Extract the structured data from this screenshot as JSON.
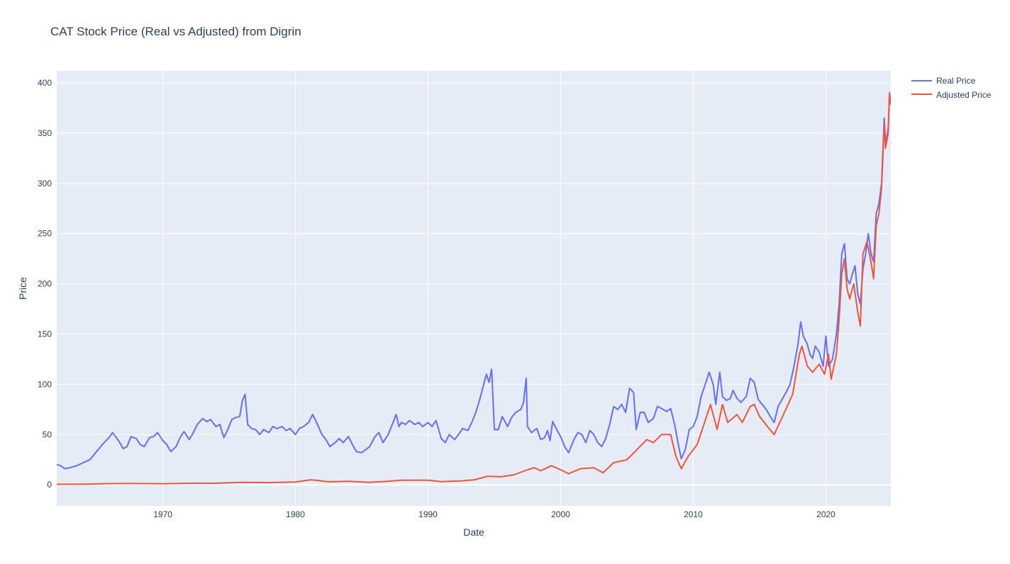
{
  "chart_data": {
    "type": "line",
    "title": "CAT Stock Price (Real vs Adjusted) from Digrin",
    "xlabel": "Date",
    "ylabel": "Price",
    "xlim": [
      1962.0,
      2024.9
    ],
    "ylim": [
      -21,
      412
    ],
    "x_ticks": [
      1970,
      1980,
      1990,
      2000,
      2010,
      2020
    ],
    "y_ticks": [
      0,
      50,
      100,
      150,
      200,
      250,
      300,
      350,
      400
    ],
    "grid": true,
    "legend_position": "top-right",
    "colors": {
      "plot_bg": "#e5ecf6",
      "grid": "#ffffff",
      "real": "#636efa",
      "adjusted": "#ef553b"
    },
    "series": [
      {
        "name": "Real Price",
        "color": "#636efa",
        "points": [
          [
            1962.0,
            20
          ],
          [
            1962.3,
            19
          ],
          [
            1962.6,
            16
          ],
          [
            1963.0,
            17
          ],
          [
            1963.5,
            19
          ],
          [
            1964.0,
            22
          ],
          [
            1964.5,
            25
          ],
          [
            1965.0,
            33
          ],
          [
            1965.5,
            41
          ],
          [
            1965.8,
            45
          ],
          [
            1966.0,
            48
          ],
          [
            1966.2,
            52
          ],
          [
            1966.5,
            47
          ],
          [
            1966.8,
            41
          ],
          [
            1967.0,
            36
          ],
          [
            1967.3,
            38
          ],
          [
            1967.6,
            48
          ],
          [
            1968.0,
            46
          ],
          [
            1968.3,
            40
          ],
          [
            1968.6,
            38
          ],
          [
            1969.0,
            47
          ],
          [
            1969.3,
            48
          ],
          [
            1969.6,
            52
          ],
          [
            1970.0,
            44
          ],
          [
            1970.3,
            40
          ],
          [
            1970.6,
            33
          ],
          [
            1971.0,
            38
          ],
          [
            1971.3,
            47
          ],
          [
            1971.6,
            53
          ],
          [
            1972.0,
            45
          ],
          [
            1972.3,
            52
          ],
          [
            1972.6,
            60
          ],
          [
            1973.0,
            66
          ],
          [
            1973.3,
            63
          ],
          [
            1973.6,
            65
          ],
          [
            1974.0,
            58
          ],
          [
            1974.3,
            60
          ],
          [
            1974.6,
            47
          ],
          [
            1974.9,
            55
          ],
          [
            1975.2,
            65
          ],
          [
            1975.5,
            67
          ],
          [
            1975.8,
            68
          ],
          [
            1976.0,
            84
          ],
          [
            1976.2,
            90
          ],
          [
            1976.4,
            60
          ],
          [
            1976.7,
            56
          ],
          [
            1977.0,
            55
          ],
          [
            1977.3,
            50
          ],
          [
            1977.6,
            55
          ],
          [
            1978.0,
            52
          ],
          [
            1978.3,
            58
          ],
          [
            1978.6,
            56
          ],
          [
            1979.0,
            58
          ],
          [
            1979.3,
            54
          ],
          [
            1979.6,
            56
          ],
          [
            1980.0,
            50
          ],
          [
            1980.3,
            56
          ],
          [
            1980.6,
            58
          ],
          [
            1981.0,
            62
          ],
          [
            1981.3,
            70
          ],
          [
            1981.6,
            62
          ],
          [
            1982.0,
            50
          ],
          [
            1982.3,
            45
          ],
          [
            1982.6,
            38
          ],
          [
            1983.0,
            42
          ],
          [
            1983.3,
            46
          ],
          [
            1983.6,
            42
          ],
          [
            1984.0,
            48
          ],
          [
            1984.3,
            40
          ],
          [
            1984.6,
            33
          ],
          [
            1985.0,
            32
          ],
          [
            1985.3,
            35
          ],
          [
            1985.6,
            38
          ],
          [
            1986.0,
            48
          ],
          [
            1986.3,
            52
          ],
          [
            1986.6,
            42
          ],
          [
            1987.0,
            50
          ],
          [
            1987.3,
            60
          ],
          [
            1987.6,
            70
          ],
          [
            1987.8,
            58
          ],
          [
            1988.0,
            62
          ],
          [
            1988.3,
            60
          ],
          [
            1988.6,
            64
          ],
          [
            1989.0,
            60
          ],
          [
            1989.3,
            62
          ],
          [
            1989.6,
            58
          ],
          [
            1990.0,
            62
          ],
          [
            1990.3,
            58
          ],
          [
            1990.6,
            64
          ],
          [
            1991.0,
            46
          ],
          [
            1991.3,
            42
          ],
          [
            1991.6,
            50
          ],
          [
            1992.0,
            45
          ],
          [
            1992.3,
            50
          ],
          [
            1992.6,
            56
          ],
          [
            1993.0,
            54
          ],
          [
            1993.3,
            62
          ],
          [
            1993.6,
            72
          ],
          [
            1993.9,
            85
          ],
          [
            1994.2,
            100
          ],
          [
            1994.4,
            110
          ],
          [
            1994.6,
            102
          ],
          [
            1994.8,
            115
          ],
          [
            1995.0,
            55
          ],
          [
            1995.3,
            55
          ],
          [
            1995.6,
            68
          ],
          [
            1996.0,
            58
          ],
          [
            1996.3,
            67
          ],
          [
            1996.6,
            72
          ],
          [
            1997.0,
            75
          ],
          [
            1997.2,
            82
          ],
          [
            1997.4,
            106
          ],
          [
            1997.5,
            58
          ],
          [
            1997.8,
            52
          ],
          [
            1998.2,
            56
          ],
          [
            1998.5,
            45
          ],
          [
            1998.8,
            47
          ],
          [
            1999.0,
            54
          ],
          [
            1999.2,
            44
          ],
          [
            1999.4,
            63
          ],
          [
            1999.7,
            55
          ],
          [
            2000.0,
            48
          ],
          [
            2000.3,
            38
          ],
          [
            2000.6,
            32
          ],
          [
            2001.0,
            45
          ],
          [
            2001.3,
            52
          ],
          [
            2001.6,
            50
          ],
          [
            2001.9,
            42
          ],
          [
            2002.2,
            54
          ],
          [
            2002.5,
            50
          ],
          [
            2002.8,
            42
          ],
          [
            2003.1,
            38
          ],
          [
            2003.4,
            46
          ],
          [
            2003.7,
            60
          ],
          [
            2004.0,
            78
          ],
          [
            2004.3,
            75
          ],
          [
            2004.6,
            80
          ],
          [
            2004.9,
            72
          ],
          [
            2005.2,
            96
          ],
          [
            2005.5,
            92
          ],
          [
            2005.7,
            55
          ],
          [
            2006.0,
            72
          ],
          [
            2006.3,
            72
          ],
          [
            2006.6,
            62
          ],
          [
            2007.0,
            66
          ],
          [
            2007.3,
            78
          ],
          [
            2007.6,
            76
          ],
          [
            2008.0,
            73
          ],
          [
            2008.3,
            76
          ],
          [
            2008.6,
            60
          ],
          [
            2008.9,
            38
          ],
          [
            2009.1,
            26
          ],
          [
            2009.4,
            35
          ],
          [
            2009.7,
            55
          ],
          [
            2010.0,
            58
          ],
          [
            2010.3,
            68
          ],
          [
            2010.6,
            88
          ],
          [
            2010.9,
            100
          ],
          [
            2011.2,
            112
          ],
          [
            2011.5,
            100
          ],
          [
            2011.7,
            80
          ],
          [
            2012.0,
            112
          ],
          [
            2012.2,
            88
          ],
          [
            2012.5,
            84
          ],
          [
            2012.8,
            86
          ],
          [
            2013.0,
            94
          ],
          [
            2013.3,
            86
          ],
          [
            2013.6,
            82
          ],
          [
            2014.0,
            88
          ],
          [
            2014.3,
            106
          ],
          [
            2014.6,
            102
          ],
          [
            2014.9,
            85
          ],
          [
            2015.2,
            80
          ],
          [
            2015.5,
            75
          ],
          [
            2015.8,
            68
          ],
          [
            2016.1,
            62
          ],
          [
            2016.4,
            78
          ],
          [
            2016.7,
            85
          ],
          [
            2017.0,
            92
          ],
          [
            2017.3,
            100
          ],
          [
            2017.6,
            118
          ],
          [
            2017.9,
            140
          ],
          [
            2018.1,
            162
          ],
          [
            2018.3,
            148
          ],
          [
            2018.6,
            140
          ],
          [
            2018.8,
            130
          ],
          [
            2019.0,
            126
          ],
          [
            2019.2,
            138
          ],
          [
            2019.5,
            132
          ],
          [
            2019.8,
            118
          ],
          [
            2020.0,
            148
          ],
          [
            2020.2,
            118
          ],
          [
            2020.5,
            125
          ],
          [
            2020.8,
            150
          ],
          [
            2021.0,
            180
          ],
          [
            2021.2,
            230
          ],
          [
            2021.4,
            240
          ],
          [
            2021.6,
            205
          ],
          [
            2021.8,
            200
          ],
          [
            2022.0,
            210
          ],
          [
            2022.2,
            218
          ],
          [
            2022.4,
            190
          ],
          [
            2022.6,
            180
          ],
          [
            2022.8,
            215
          ],
          [
            2023.0,
            230
          ],
          [
            2023.2,
            250
          ],
          [
            2023.4,
            230
          ],
          [
            2023.6,
            222
          ],
          [
            2023.8,
            270
          ],
          [
            2024.0,
            280
          ],
          [
            2024.2,
            300
          ],
          [
            2024.4,
            365
          ],
          [
            2024.5,
            340
          ],
          [
            2024.7,
            355
          ],
          [
            2024.8,
            390
          ],
          [
            2024.9,
            378
          ]
        ]
      },
      {
        "name": "Adjusted Price",
        "color": "#ef553b",
        "points": [
          [
            1962.0,
            0.5
          ],
          [
            1964.0,
            0.6
          ],
          [
            1966.0,
            1.2
          ],
          [
            1968.0,
            1.3
          ],
          [
            1970.0,
            1.1
          ],
          [
            1972.0,
            1.5
          ],
          [
            1974.0,
            1.6
          ],
          [
            1976.0,
            2.4
          ],
          [
            1978.0,
            2.2
          ],
          [
            1980.0,
            2.8
          ],
          [
            1981.2,
            5.0
          ],
          [
            1982.5,
            3.0
          ],
          [
            1984.0,
            3.5
          ],
          [
            1985.5,
            2.5
          ],
          [
            1987.0,
            3.5
          ],
          [
            1988.0,
            4.6
          ],
          [
            1990.0,
            4.5
          ],
          [
            1991.0,
            3.2
          ],
          [
            1992.5,
            3.8
          ],
          [
            1993.5,
            5.0
          ],
          [
            1994.5,
            8.5
          ],
          [
            1995.5,
            8.0
          ],
          [
            1996.5,
            10.0
          ],
          [
            1997.5,
            15.0
          ],
          [
            1998.0,
            17.0
          ],
          [
            1998.5,
            14.0
          ],
          [
            1999.3,
            19.0
          ],
          [
            2000.0,
            15.0
          ],
          [
            2000.6,
            11.0
          ],
          [
            2001.5,
            16.0
          ],
          [
            2002.5,
            17.0
          ],
          [
            2003.2,
            12.0
          ],
          [
            2004.0,
            22.0
          ],
          [
            2005.0,
            25.0
          ],
          [
            2005.6,
            33.0
          ],
          [
            2006.5,
            45.0
          ],
          [
            2007.0,
            42.0
          ],
          [
            2007.6,
            50.0
          ],
          [
            2008.3,
            50.0
          ],
          [
            2008.7,
            28.0
          ],
          [
            2009.1,
            16.0
          ],
          [
            2009.6,
            28.0
          ],
          [
            2010.3,
            40.0
          ],
          [
            2010.8,
            60.0
          ],
          [
            2011.3,
            80.0
          ],
          [
            2011.8,
            55.0
          ],
          [
            2012.2,
            80.0
          ],
          [
            2012.6,
            62.0
          ],
          [
            2013.3,
            70.0
          ],
          [
            2013.7,
            62.0
          ],
          [
            2014.3,
            78.0
          ],
          [
            2014.6,
            80.0
          ],
          [
            2015.0,
            68.0
          ],
          [
            2015.6,
            58.0
          ],
          [
            2016.1,
            50.0
          ],
          [
            2016.8,
            70.0
          ],
          [
            2017.5,
            90.0
          ],
          [
            2018.0,
            130.0
          ],
          [
            2018.2,
            138.0
          ],
          [
            2018.6,
            118.0
          ],
          [
            2019.0,
            112.0
          ],
          [
            2019.5,
            120.0
          ],
          [
            2019.9,
            110.0
          ],
          [
            2020.2,
            130.0
          ],
          [
            2020.4,
            105.0
          ],
          [
            2020.8,
            130.0
          ],
          [
            2021.0,
            165.0
          ],
          [
            2021.2,
            210.0
          ],
          [
            2021.4,
            225.0
          ],
          [
            2021.6,
            195.0
          ],
          [
            2021.8,
            185.0
          ],
          [
            2022.1,
            200.0
          ],
          [
            2022.4,
            172.0
          ],
          [
            2022.6,
            158.0
          ],
          [
            2022.8,
            230.0
          ],
          [
            2023.1,
            242.0
          ],
          [
            2023.4,
            222.0
          ],
          [
            2023.6,
            205.0
          ],
          [
            2023.8,
            258.0
          ],
          [
            2024.0,
            270.0
          ],
          [
            2024.2,
            295.0
          ],
          [
            2024.4,
            360.0
          ],
          [
            2024.5,
            335.0
          ],
          [
            2024.7,
            350.0
          ],
          [
            2024.8,
            390.0
          ],
          [
            2024.9,
            380.0
          ]
        ]
      }
    ]
  }
}
